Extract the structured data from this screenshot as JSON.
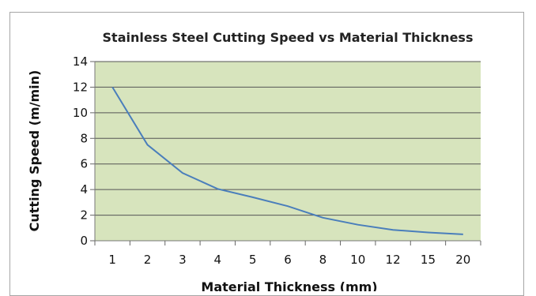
{
  "chart_data": {
    "type": "line",
    "title": "Stainless Steel Cutting Speed vs Material Thickness",
    "xlabel": "Material Thickness (mm)",
    "ylabel": "Cutting Speed (m/min)",
    "categories": [
      "1",
      "2",
      "3",
      "4",
      "5",
      "6",
      "8",
      "10",
      "12",
      "15",
      "20"
    ],
    "series": [
      {
        "values": [
          12,
          7.5,
          5.3,
          4.05,
          3.4,
          2.7,
          1.8,
          1.25,
          0.85,
          0.65,
          0.5
        ]
      }
    ],
    "ylim": [
      0,
      14
    ],
    "yticks": [
      0,
      2,
      4,
      6,
      8,
      10,
      12,
      14
    ],
    "grid": true,
    "legend": "none",
    "colors": {
      "plot_background": "#d7e4bd",
      "line": "#4a7ebb",
      "gridline": "#555555"
    }
  }
}
